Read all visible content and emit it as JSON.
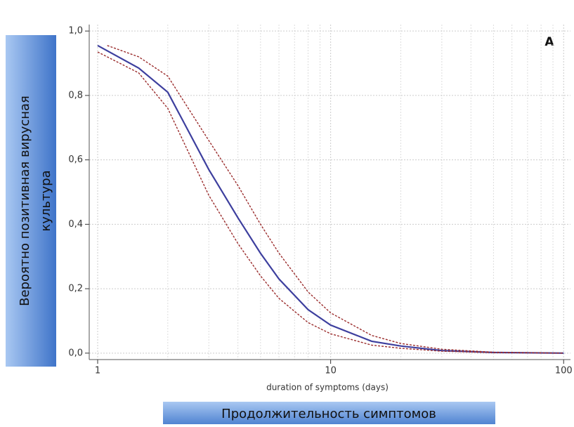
{
  "chart_data": {
    "type": "line",
    "annotation": "A",
    "xlabel": "duration of symptoms (days)",
    "xlabel_box": "Продолжительность симптомов",
    "ylabel": [
      "Вероятно позитивная вирусная",
      "культура"
    ],
    "xscale": "log",
    "xlim": [
      0.92,
      107
    ],
    "ylim": [
      -0.02,
      1.02
    ],
    "xticks": [
      1,
      10,
      100
    ],
    "xminor_ticks": [
      2,
      3,
      4,
      5,
      6,
      7,
      8,
      9,
      20,
      30,
      40,
      50,
      60,
      70,
      80,
      90
    ],
    "yticks": [
      {
        "value": 0,
        "label": "0,0"
      },
      {
        "value": 0.2,
        "label": "0,2"
      },
      {
        "value": 0.4,
        "label": "0,4"
      },
      {
        "value": 0.6,
        "label": "0,6"
      },
      {
        "value": 0.8,
        "label": "0,8"
      },
      {
        "value": 1,
        "label": "1,0"
      }
    ],
    "grid": true,
    "series": [
      {
        "color": "#3d3f9e",
        "style": "solid",
        "x": [
          1,
          1.5,
          2,
          3,
          4,
          5,
          6,
          8,
          10,
          15,
          20,
          30,
          50,
          100
        ],
        "values": [
          0.955,
          0.885,
          0.81,
          0.57,
          0.42,
          0.31,
          0.23,
          0.135,
          0.087,
          0.037,
          0.022,
          0.008,
          0.002,
          0
        ]
      },
      {
        "color": "#9b2d2d",
        "style": "dashed",
        "x": [
          1.1,
          1.5,
          2,
          3,
          4,
          5,
          6,
          8,
          10,
          15,
          20,
          30,
          50,
          100
        ],
        "values": [
          0.955,
          0.92,
          0.86,
          0.66,
          0.52,
          0.4,
          0.31,
          0.19,
          0.125,
          0.055,
          0.03,
          0.012,
          0.003,
          0
        ]
      },
      {
        "color": "#9b2d2d",
        "style": "dashed",
        "x": [
          1,
          1.5,
          2,
          3,
          4,
          5,
          6,
          8,
          10,
          15,
          20,
          30,
          50,
          100
        ],
        "values": [
          0.935,
          0.87,
          0.76,
          0.49,
          0.34,
          0.24,
          0.17,
          0.095,
          0.06,
          0.025,
          0.015,
          0.006,
          0.0015,
          0
        ]
      }
    ]
  }
}
